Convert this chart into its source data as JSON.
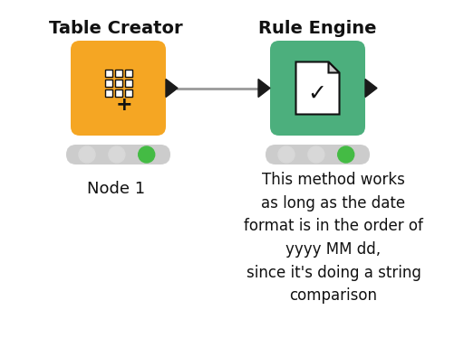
{
  "bg_color": "#ffffff",
  "title1": "Table Creator",
  "title2": "Rule Engine",
  "node1_color": "#F5A623",
  "node2_color": "#4CAF7D",
  "indicator_bg": "#cccccc",
  "dot_colors_left": [
    "#d8d8d8",
    "#d8d8d8",
    "#44bb44"
  ],
  "dot_colors_right": [
    "#d8d8d8",
    "#d8d8d8",
    "#44bb44"
  ],
  "node1_label": "Node 1",
  "annotation_text": "This method works\nas long as the date\nformat is in the order of\nyyyy MM dd,\nsince it's doing a string\ncomparison",
  "title_fontsize": 14,
  "label_fontsize": 13,
  "annotation_fontsize": 12,
  "arrow_color": "#333333",
  "line_color": "#999999"
}
